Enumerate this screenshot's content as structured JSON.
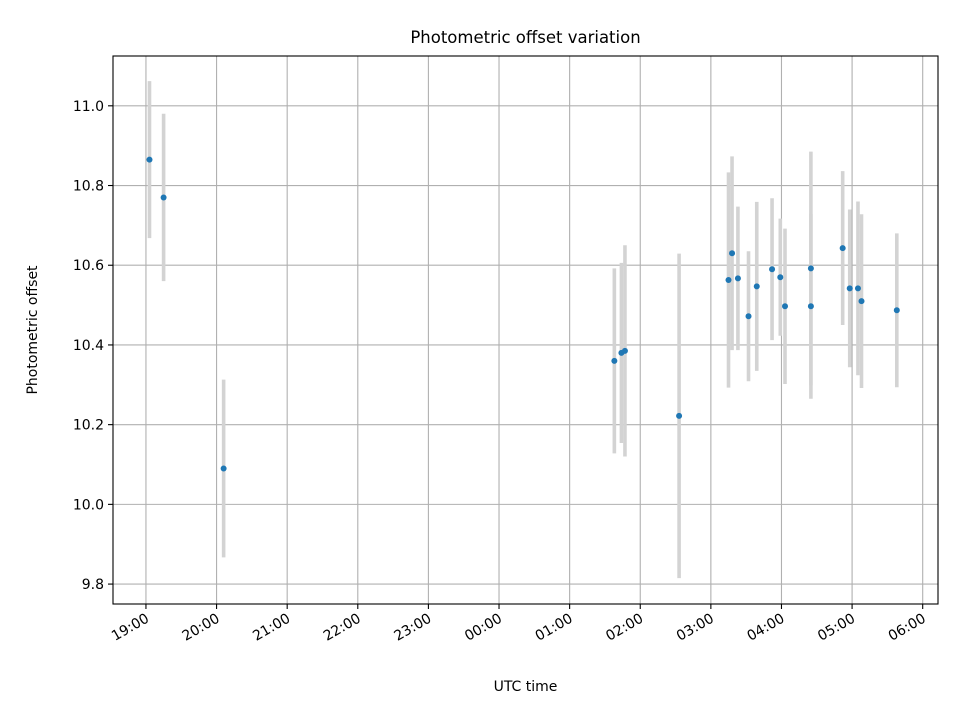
{
  "chart_data": {
    "type": "scatter",
    "title": "Photometric offset variation",
    "xlabel": "UTC time",
    "ylabel": "Photometric offset",
    "x_is_time": true,
    "xlim": [
      "18:32",
      "06:13"
    ],
    "ylim": [
      9.75,
      11.125
    ],
    "x_ticks": [
      "19:00",
      "20:00",
      "21:00",
      "22:00",
      "23:00",
      "00:00",
      "01:00",
      "02:00",
      "03:00",
      "04:00",
      "05:00",
      "06:00"
    ],
    "y_ticks": [
      "9.8",
      "10.0",
      "10.2",
      "10.4",
      "10.6",
      "10.8",
      "11.0"
    ],
    "grid": true,
    "point_color": "#1f77b4",
    "errorbar_color": "#d3d3d3",
    "series": [
      {
        "points": [
          {
            "t": "19:03",
            "y": 10.865,
            "err": 0.197
          },
          {
            "t": "19:15",
            "y": 10.77,
            "err": 0.21
          },
          {
            "t": "20:06",
            "y": 10.09,
            "err": 0.223
          },
          {
            "t": "01:38",
            "y": 10.36,
            "err": 0.232
          },
          {
            "t": "01:44",
            "y": 10.38,
            "err": 0.226
          },
          {
            "t": "01:47",
            "y": 10.385,
            "err": 0.265
          },
          {
            "t": "02:33",
            "y": 10.222,
            "err": 0.407
          },
          {
            "t": "03:15",
            "y": 10.563,
            "err": 0.27
          },
          {
            "t": "03:18",
            "y": 10.63,
            "err": 0.243
          },
          {
            "t": "03:23",
            "y": 10.567,
            "err": 0.18
          },
          {
            "t": "03:32",
            "y": 10.472,
            "err": 0.163
          },
          {
            "t": "03:39",
            "y": 10.547,
            "err": 0.212
          },
          {
            "t": "03:52",
            "y": 10.59,
            "err": 0.178
          },
          {
            "t": "03:59",
            "y": 10.57,
            "err": 0.147
          },
          {
            "t": "04:03",
            "y": 10.497,
            "err": 0.195
          },
          {
            "t": "04:25",
            "y": 10.592,
            "err": 0.293
          },
          {
            "t": "04:25",
            "y": 10.497,
            "err": 0.232
          },
          {
            "t": "04:52",
            "y": 10.643,
            "err": 0.193
          },
          {
            "t": "04:58",
            "y": 10.542,
            "err": 0.198
          },
          {
            "t": "05:05",
            "y": 10.542,
            "err": 0.218
          },
          {
            "t": "05:08",
            "y": 10.51,
            "err": 0.218
          },
          {
            "t": "05:38",
            "y": 10.487,
            "err": 0.193
          }
        ]
      }
    ]
  }
}
